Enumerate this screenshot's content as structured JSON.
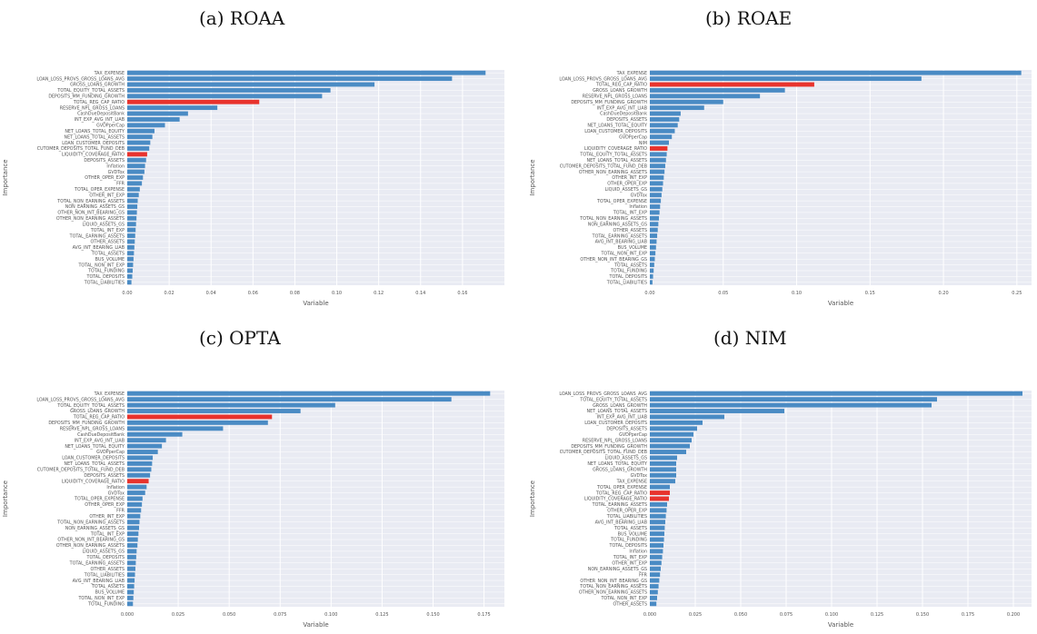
{
  "colors": {
    "bar": "#4a8bc4",
    "highlight": "#e8332d",
    "plot_bg": "#e9ebf3",
    "grid": "#ffffff",
    "text": "#555555"
  },
  "captions": {
    "a": "(a) ROAA",
    "b": "(b) ROAE",
    "c": "(c) OPTA",
    "d": "(d) NIM"
  },
  "chart_data": [
    {
      "type": "bar",
      "orientation": "horizontal",
      "xlabel": "Variable",
      "ylabel": "Importance",
      "xlim": [
        0,
        0.18
      ],
      "xticks": [
        "0.00",
        "0.02",
        "0.04",
        "0.06",
        "0.08",
        "0.10",
        "0.12",
        "0.14",
        "0.16"
      ],
      "highlight": [
        "TOTAL_REG_CAP_RATIO",
        "LIQUIDITY_COVERAGE_RATIO"
      ],
      "categories": [
        "TAX_EXPENSE",
        "LOAN_LOSS_PROVS_GROSS_LOANS_AVG",
        "GROSS_LOANS_GROWTH",
        "TOTAL_EQUITY_TOTAL_ASSETS",
        "DEPOSITS_MM_FUNDING_GROWTH",
        "TOTAL_REG_CAP_RATIO",
        "RESERVE_NPL_GROSS_LOANS",
        "CashDueDepositBank",
        "INT_EXP_AVG_INT_LIAB",
        "GVDPperCap",
        "NET_LOANS_TOTAL_EQUITY",
        "NET_LOANS_TOTAL_ASSETS",
        "LOAN_CUSTOMER_DEPOSITS",
        "CUTOMER_DEPOSITS_TOTAL_FUND_DEB",
        "LIQUIDITY_COVERAGE_RATIO",
        "DEPOSITS_ASSETS",
        "Inflation",
        "GVDTox",
        "OTHER_OPER_EXP",
        "FFR",
        "TOTAL_OPER_EXPENSE",
        "OTHER_INT_EXP",
        "TOTAL_NON_EARNING_ASSETS",
        "NON_EARNING_ASSETS_GS",
        "OTHER_NON_INT_BEARING_GS",
        "OTHER_NON_EARNING_ASSETS",
        "LIQUID_ASSETS_GS",
        "TOTAL_INT_EXP",
        "TOTAL_EARNING_ASSETS",
        "OTHER_ASSETS",
        "AVG_INT_BEARING_LIAB",
        "TOTAL_ASSETS",
        "BUS_VOLUME",
        "TOTAL_NON_INT_EXP",
        "TOTAL_FUNDING",
        "TOTAL_DEPOSITS",
        "TOTAL_LIABILITIES"
      ],
      "values": [
        0.171,
        0.155,
        0.118,
        0.097,
        0.093,
        0.063,
        0.043,
        0.029,
        0.025,
        0.018,
        0.013,
        0.012,
        0.011,
        0.0105,
        0.0095,
        0.009,
        0.0085,
        0.0082,
        0.0075,
        0.007,
        0.006,
        0.0055,
        0.005,
        0.0048,
        0.0046,
        0.0044,
        0.0042,
        0.004,
        0.0038,
        0.0036,
        0.0034,
        0.0032,
        0.003,
        0.0028,
        0.0026,
        0.0024,
        0.002
      ]
    },
    {
      "type": "bar",
      "orientation": "horizontal",
      "xlabel": "Variable",
      "ylabel": "Importance",
      "xlim": [
        0,
        0.26
      ],
      "xticks": [
        "0.00",
        "0.05",
        "0.10",
        "0.15",
        "0.20",
        "0.25"
      ],
      "highlight": [
        "TOTAL_REG_CAP_RATIO",
        "LIQUIDITY_COVERAGE_RATIO"
      ],
      "categories": [
        "TAX_EXPENSE",
        "LOAN_LOSS_PROVS_GROSS_LOANS_AVG",
        "TOTAL_REG_CAP_RATIO",
        "GROSS_LOANS_GROWTH",
        "RESERVE_NPL_GROSS_LOANS",
        "DEPOSITS_MM_FUNDING_GROWTH",
        "INT_EXP_AVG_INT_LIAB",
        "CashDueDepositBank",
        "DEPOSITS_ASSETS",
        "NET_LOANS_TOTAL_EQUITY",
        "LOAN_CUSTOMER_DEPOSITS",
        "GVDPperCap",
        "NIM",
        "LIQUIDITY_COVERAGE_RATIO",
        "TOTAL_EQUITY_TOTAL_ASSETS",
        "NET_LOANS_TOTAL_ASSETS",
        "CUTOMER_DEPOSITS_TOTAL_FUND_DEB",
        "OTHER_NON_EARNING_ASSETS",
        "OTHER_INT_EXP",
        "OTHER_OPER_EXP",
        "LIQUID_ASSETS_GS",
        "GVDTox",
        "TOTAL_OPER_EXPENSE",
        "Inflation",
        "TOTAL_INT_EXP",
        "TOTAL_NON_EARNING_ASSETS",
        "NON_EARNING_ASSETS_GS",
        "OTHER_ASSETS",
        "TOTAL_EARNING_ASSETS",
        "AVG_INT_BEARING_LIAB",
        "BUS_VOLUME",
        "TOTAL_NON_INT_EXP",
        "OTHER_NON_INT_BEARING_GS",
        "TOTAL_ASSETS",
        "TOTAL_FUNDING",
        "TOTAL_DEPOSITS",
        "TOTAL_LIABILITIES"
      ],
      "values": [
        0.253,
        0.185,
        0.112,
        0.092,
        0.075,
        0.05,
        0.037,
        0.021,
        0.02,
        0.019,
        0.017,
        0.015,
        0.013,
        0.012,
        0.0115,
        0.011,
        0.0105,
        0.01,
        0.0095,
        0.009,
        0.0085,
        0.008,
        0.0075,
        0.007,
        0.0066,
        0.0062,
        0.0058,
        0.0054,
        0.005,
        0.0046,
        0.0042,
        0.0038,
        0.0034,
        0.003,
        0.0026,
        0.0022,
        0.0018
      ]
    },
    {
      "type": "bar",
      "orientation": "horizontal",
      "xlabel": "Variable",
      "ylabel": "Importance",
      "xlim": [
        0,
        0.185
      ],
      "xticks": [
        "0.000",
        "0.025",
        "0.050",
        "0.075",
        "0.100",
        "0.125",
        "0.150",
        "0.175"
      ],
      "highlight": [
        "TOTAL_REG_CAP_RATIO",
        "LIQUIDITY_COVERAGE_RATIO"
      ],
      "categories": [
        "TAX_EXPENSE",
        "LOAN_LOSS_PROVS_GROSS_LOANS_AVG",
        "TOTAL_EQUITY_TOTAL_ASSETS",
        "GROSS_LOANS_GROWTH",
        "TOTAL_REG_CAP_RATIO",
        "DEPOSITS_MM_FUNDING_GROWTH",
        "RESERVE_NPL_GROSS_LOANS",
        "CashDueDepositBank",
        "INT_EXP_AVG_INT_LIAB",
        "NET_LOANS_TOTAL_EQUITY",
        "GVDPperCap",
        "LOAN_CUSTOMER_DEPOSITS",
        "NET_LOANS_TOTAL_ASSETS",
        "CUTOMER_DEPOSITS_TOTAL_FUND_DEB",
        "DEPOSITS_ASSETS",
        "LIQUIDITY_COVERAGE_RATIO",
        "Inflation",
        "GVDTox",
        "TOTAL_OPER_EXPENSE",
        "OTHER_OPER_EXP",
        "FFR",
        "OTHER_INT_EXP",
        "TOTAL_NON_EARNING_ASSETS",
        "NON_EARNING_ASSETS_GS",
        "TOTAL_INT_EXP",
        "OTHER_NON_INT_BEARING_GS",
        "OTHER_NON_EARNING_ASSETS",
        "LIQUID_ASSETS_GS",
        "TOTAL_DEPOSITS",
        "TOTAL_EARNING_ASSETS",
        "OTHER_ASSETS",
        "TOTAL_LIABILITIES",
        "AVG_INT_BEARING_LIAB",
        "TOTAL_ASSETS",
        "BUS_VOLUME",
        "TOTAL_NON_INT_EXP",
        "TOTAL_FUNDING"
      ],
      "values": [
        0.178,
        0.159,
        0.102,
        0.085,
        0.071,
        0.069,
        0.047,
        0.027,
        0.019,
        0.017,
        0.015,
        0.0125,
        0.0122,
        0.0118,
        0.0112,
        0.0105,
        0.0095,
        0.0088,
        0.0075,
        0.0072,
        0.0068,
        0.0064,
        0.006,
        0.0058,
        0.0055,
        0.0052,
        0.005,
        0.0046,
        0.0044,
        0.0042,
        0.004,
        0.0038,
        0.0036,
        0.0034,
        0.0032,
        0.003,
        0.0028
      ]
    },
    {
      "type": "bar",
      "orientation": "horizontal",
      "xlabel": "Variable",
      "ylabel": "Importance",
      "xlim": [
        0,
        0.21
      ],
      "xticks": [
        "0.000",
        "0.025",
        "0.050",
        "0.075",
        "0.100",
        "0.125",
        "0.150",
        "0.175",
        "0.200"
      ],
      "highlight": [
        "TOTAL_REG_CAP_RATIO",
        "LIQUIDITY_COVERAGE_RATIO"
      ],
      "categories": [
        "LOAN_LOSS_PROVS_GROSS_LOANS_AVG",
        "TOTAL_EQUITY_TOTAL_ASSETS",
        "GROSS_LOANS_GROWTH",
        "NET_LOANS_TOTAL_ASSETS",
        "INT_EXP_AVG_INT_LIAB",
        "LOAN_CUSTOMER_DEPOSITS",
        "DEPOSITS_ASSETS",
        "GVDPperCap",
        "RESERVE_NPL_GROSS_LOANS",
        "DEPOSITS_MM_FUNDING_GROWTH",
        "CUTOMER_DEPOSITS_TOTAL_FUND_DEB",
        "LIQUID_ASSETS_GS",
        "NET_LOANS_TOTAL_EQUITY",
        "GROSS_LOANS_GROWTH",
        "GVDTox",
        "TAX_EXPENSE",
        "TOTAL_OPER_EXPENSE",
        "TOTAL_REG_CAP_RATIO",
        "LIQUIDITY_COVERAGE_RATIO",
        "TOTAL_EARNING_ASSETS",
        "OTHER_OPER_EXP",
        "TOTAL_LIABILITIES",
        "AVG_INT_BEARING_LIAB",
        "TOTAL_ASSETS",
        "BUS_VOLUME",
        "TOTAL_FUNDING",
        "TOTAL_DEPOSITS",
        "Inflation",
        "TOTAL_INT_EXP",
        "OTHER_INT_EXP",
        "NON_EARNING_ASSETS_GS",
        "FFR",
        "OTHER_NON_INT_BEARING_GS",
        "TOTAL_NON_EARNING_ASSETS",
        "OTHER_NON_EARNING_ASSETS",
        "TOTAL_NON_INT_EXP",
        "OTHER_ASSETS"
      ],
      "values": [
        0.205,
        0.158,
        0.155,
        0.074,
        0.041,
        0.029,
        0.026,
        0.024,
        0.023,
        0.022,
        0.02,
        0.015,
        0.0145,
        0.0145,
        0.0145,
        0.014,
        0.011,
        0.011,
        0.0105,
        0.0095,
        0.0092,
        0.0088,
        0.0085,
        0.0082,
        0.008,
        0.0078,
        0.0075,
        0.0072,
        0.0068,
        0.0064,
        0.006,
        0.0056,
        0.0052,
        0.0048,
        0.0044,
        0.004,
        0.0036
      ]
    }
  ]
}
